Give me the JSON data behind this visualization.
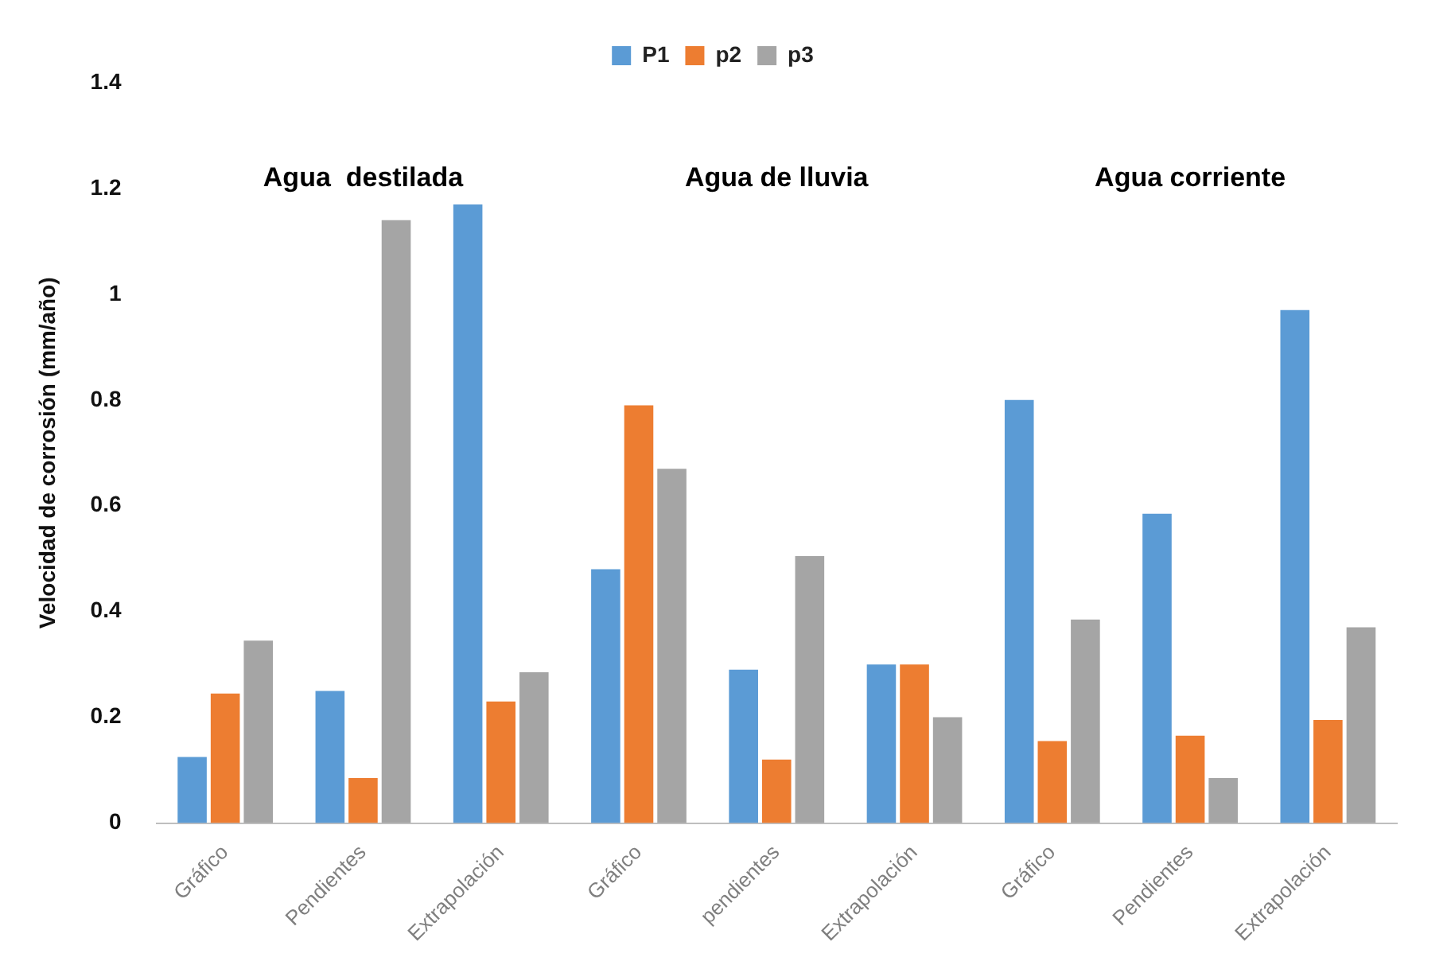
{
  "chart_data": {
    "type": "bar",
    "ylabel": "Velocidad de corrosión (mm/año)",
    "categories": [
      "Gráfico",
      "Pendientes",
      "Extrapolación",
      "Gráfico",
      "pendientes",
      "Extrapolación",
      "Gráfico",
      "Pendientes",
      "Extrapolación"
    ],
    "series": [
      {
        "name": "P1",
        "color": "#5b9bd5",
        "values": [
          0.125,
          0.25,
          1.17,
          0.48,
          0.29,
          0.3,
          0.8,
          0.585,
          0.97
        ]
      },
      {
        "name": "p2",
        "color": "#ed7d31",
        "values": [
          0.245,
          0.085,
          0.23,
          0.79,
          0.12,
          0.3,
          0.155,
          0.165,
          0.195
        ]
      },
      {
        "name": "p3",
        "color": "#a5a5a5",
        "values": [
          0.345,
          1.14,
          0.285,
          0.67,
          0.505,
          0.2,
          0.385,
          0.085,
          0.37
        ]
      }
    ],
    "annotations": [
      "Agua  destilada",
      "Agua de lluvia",
      "Agua corriente"
    ],
    "ylim": [
      0,
      1.4
    ],
    "yticks": [
      0,
      0.2,
      0.4,
      0.6,
      0.8,
      1,
      1.2,
      1.4
    ],
    "grid": false,
    "legend": "top"
  }
}
